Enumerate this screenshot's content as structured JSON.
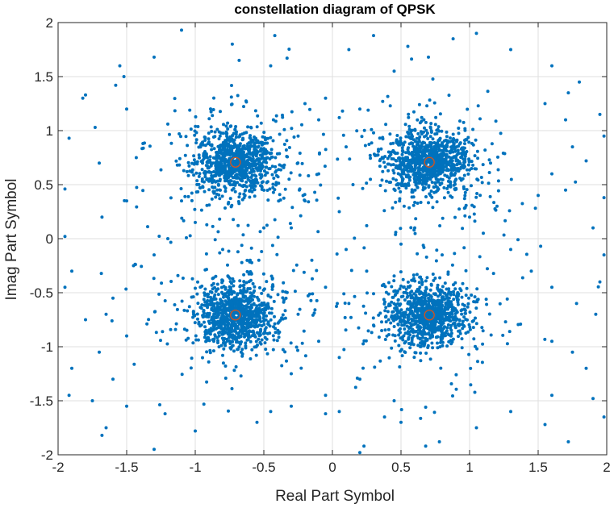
{
  "chart_data": {
    "type": "scatter",
    "title": "constellation diagram of QPSK",
    "xlabel": "Real Part Symbol",
    "ylabel": "Imag Part Symbol",
    "xlim": [
      -2,
      2
    ],
    "ylim": [
      -2,
      2
    ],
    "xticks": [
      -2,
      -1.5,
      -1,
      -0.5,
      0,
      0.5,
      1,
      1.5,
      2
    ],
    "yticks": [
      -2,
      -1.5,
      -1,
      -0.5,
      0,
      0.5,
      1,
      1.5,
      2
    ],
    "xtick_labels": [
      "-2",
      "-1.5",
      "-1",
      "-0.5",
      "0",
      "0.5",
      "1",
      "1.5",
      "2"
    ],
    "ytick_labels": [
      "-2",
      "-1.5",
      "-1",
      "-0.5",
      "0",
      "0.5",
      "1",
      "1.5",
      "2"
    ],
    "grid": true,
    "legend": "none",
    "series": [
      {
        "kind": "received-symbols",
        "marker": "dot",
        "color": "#0072BD",
        "cluster_centers": [
          [
            -0.707,
            0.707
          ],
          [
            0.707,
            0.707
          ],
          [
            -0.707,
            -0.707
          ],
          [
            0.707,
            -0.707
          ]
        ],
        "points_per_cluster": 1000,
        "cluster_spread": 0.14,
        "points": [
          [
            -1.1,
            1.93
          ],
          [
            -0.42,
            1.88
          ],
          [
            -0.73,
            1.8
          ],
          [
            -0.68,
            1.65
          ],
          [
            -1.3,
            1.68
          ],
          [
            -1.55,
            1.6
          ],
          [
            -1.52,
            1.5
          ],
          [
            -1.8,
            1.33
          ],
          [
            -1.82,
            1.3
          ],
          [
            -1.58,
            1.42
          ],
          [
            -1.92,
            0.93
          ],
          [
            -1.73,
            1.03
          ],
          [
            -1.5,
            1.2
          ],
          [
            -1.7,
            0.7
          ],
          [
            -1.95,
            0.46
          ],
          [
            -1.68,
            0.2
          ],
          [
            -1.95,
            0.02
          ],
          [
            -1.9,
            -0.3
          ],
          [
            -1.95,
            -0.45
          ],
          [
            -1.6,
            -0.55
          ],
          [
            -1.8,
            -0.75
          ],
          [
            -1.65,
            -0.7
          ],
          [
            -1.5,
            -0.9
          ],
          [
            -1.7,
            -1.05
          ],
          [
            -1.9,
            -1.2
          ],
          [
            -1.6,
            -1.3
          ],
          [
            -1.92,
            -1.45
          ],
          [
            -1.75,
            -1.5
          ],
          [
            -1.5,
            -1.55
          ],
          [
            -1.65,
            -1.75
          ],
          [
            -1.68,
            -1.82
          ],
          [
            -1.22,
            -1.62
          ],
          [
            -1.0,
            -1.78
          ],
          [
            -1.3,
            -1.95
          ],
          [
            -0.55,
            -1.7
          ],
          [
            -0.3,
            -1.55
          ],
          [
            -0.05,
            -1.62
          ],
          [
            0.05,
            -1.6
          ],
          [
            0.23,
            -1.92
          ],
          [
            0.2,
            -1.98
          ],
          [
            0.38,
            -1.65
          ],
          [
            0.5,
            -1.7
          ],
          [
            0.68,
            -1.92
          ],
          [
            0.78,
            -1.88
          ],
          [
            1.05,
            -1.75
          ],
          [
            1.3,
            -1.6
          ],
          [
            1.55,
            -1.72
          ],
          [
            1.72,
            -1.88
          ],
          [
            1.6,
            -1.45
          ],
          [
            1.9,
            -1.48
          ],
          [
            1.98,
            -1.65
          ],
          [
            1.85,
            -1.2
          ],
          [
            1.75,
            -1.05
          ],
          [
            1.6,
            -0.95
          ],
          [
            1.92,
            -0.7
          ],
          [
            1.78,
            -0.6
          ],
          [
            1.6,
            -0.45
          ],
          [
            1.95,
            -0.4
          ],
          [
            1.98,
            -0.15
          ],
          [
            1.9,
            0.1
          ],
          [
            1.98,
            0.38
          ],
          [
            1.7,
            0.45
          ],
          [
            1.6,
            0.6
          ],
          [
            1.85,
            0.72
          ],
          [
            1.75,
            0.85
          ],
          [
            1.98,
            0.95
          ],
          [
            1.95,
            1.15
          ],
          [
            1.7,
            1.1
          ],
          [
            1.55,
            1.25
          ],
          [
            1.72,
            1.35
          ],
          [
            1.8,
            1.45
          ],
          [
            1.6,
            1.6
          ],
          [
            1.3,
            1.75
          ],
          [
            1.05,
            1.9
          ],
          [
            0.88,
            1.85
          ],
          [
            0.7,
            1.68
          ],
          [
            0.55,
            1.78
          ],
          [
            0.3,
            1.88
          ],
          [
            0.12,
            1.75
          ],
          [
            0.2,
            1.2
          ],
          [
            0.05,
            1.12
          ],
          [
            -0.1,
            1.1
          ],
          [
            -0.2,
            1.25
          ],
          [
            -0.05,
            1.3
          ],
          [
            0.3,
            0.98
          ],
          [
            -0.25,
            0.95
          ],
          [
            0.1,
            0.85
          ],
          [
            -0.1,
            0.6
          ],
          [
            0.15,
            0.5
          ],
          [
            -0.2,
            0.35
          ],
          [
            0.05,
            0.25
          ],
          [
            0.25,
            0.12
          ],
          [
            -0.3,
            0.1
          ],
          [
            0.1,
            -0.1
          ],
          [
            -0.15,
            -0.2
          ],
          [
            0.25,
            -0.3
          ],
          [
            -0.05,
            -0.45
          ],
          [
            0.12,
            -0.6
          ],
          [
            -0.25,
            -0.7
          ],
          [
            0.3,
            -0.8
          ],
          [
            -0.1,
            -0.95
          ],
          [
            0.05,
            -1.1
          ],
          [
            -0.3,
            -1.25
          ],
          [
            0.2,
            -1.3
          ],
          [
            -0.05,
            -1.45
          ],
          [
            -1.2,
            0.0
          ],
          [
            -1.0,
            0.15
          ],
          [
            -0.8,
            -0.1
          ],
          [
            -0.5,
            0.1
          ],
          [
            -1.3,
            -0.15
          ],
          [
            -0.6,
            -0.2
          ],
          [
            0.6,
            0.1
          ],
          [
            0.8,
            -0.15
          ],
          [
            1.1,
            0.05
          ],
          [
            1.3,
            -0.1
          ],
          [
            0.5,
            -0.05
          ],
          [
            1.0,
            0.2
          ],
          [
            1.2,
            0.3
          ],
          [
            -1.1,
            0.35
          ],
          [
            -0.45,
            1.6
          ],
          [
            0.45,
            1.55
          ],
          [
            -0.45,
            -1.6
          ],
          [
            0.45,
            -1.5
          ],
          [
            1.5,
            0.4
          ],
          [
            -1.5,
            0.35
          ],
          [
            1.45,
            -0.3
          ],
          [
            -1.45,
            -0.25
          ]
        ]
      },
      {
        "kind": "reference-symbols",
        "marker": "circle",
        "color": "#D95319",
        "points": [
          [
            -0.707,
            0.707
          ],
          [
            0.707,
            0.707
          ],
          [
            -0.707,
            -0.707
          ],
          [
            0.707,
            -0.707
          ]
        ]
      }
    ]
  }
}
